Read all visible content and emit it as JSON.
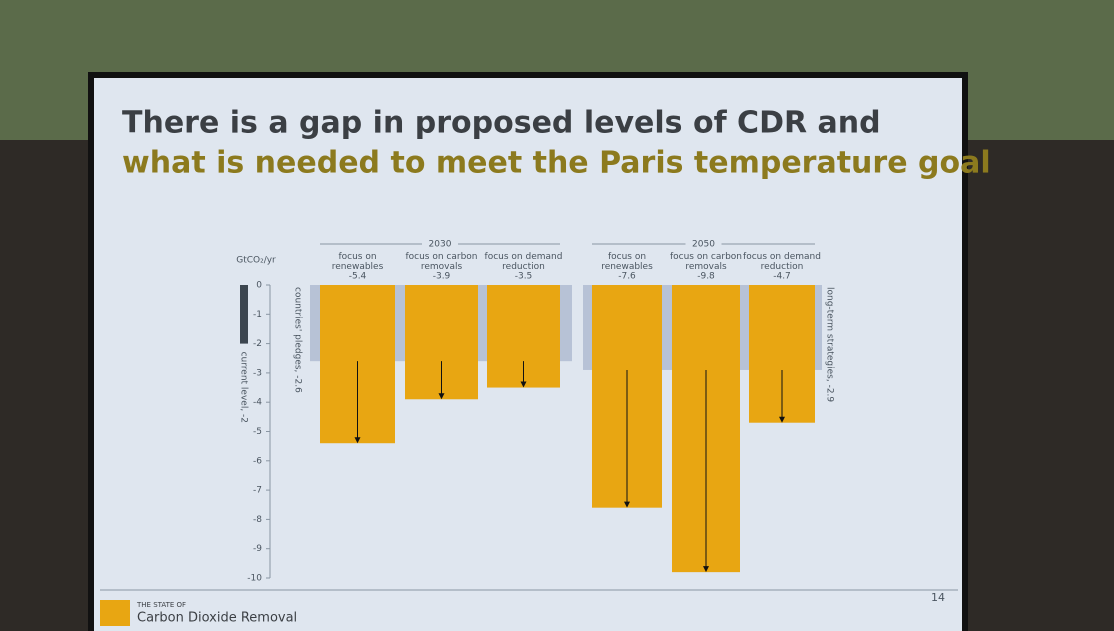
{
  "chart_data": {
    "type": "bar",
    "title": "There is a gap in proposed levels of CDR and",
    "title_highlight": "what is needed to meet the Paris temperature goal",
    "y_label": "GtCO₂/yr",
    "color": "#e8a612",
    "ylim": [
      -10,
      0
    ],
    "yticks": [
      0,
      -1,
      -2,
      -3,
      -4,
      -5,
      -6,
      -7,
      -8,
      -9,
      -10
    ],
    "current": {
      "label": "current level, -2",
      "value": -2,
      "color": "#3c4650"
    },
    "groups": [
      {
        "label": "2030",
        "categories": [
          "focus on renewables",
          "focus on carbon removals",
          "focus on demand reduction"
        ],
        "values": [
          -5.4,
          -3.9,
          -3.5
        ],
        "reference": {
          "label": "countries' pledges, -2.6",
          "value": -2.6,
          "color": "#b7c2d6"
        }
      },
      {
        "label": "2050",
        "categories": [
          "focus on renewables",
          "focus on carbon removals",
          "focus on demand reduction"
        ],
        "values": [
          -7.6,
          -9.8,
          -4.7
        ],
        "reference": {
          "label": "long-term strategies, -2.9",
          "value": -2.9,
          "color": "#b7c2d6"
        }
      }
    ],
    "footer": {
      "kicker": "THE STATE OF",
      "name": "Carbon Dioxide Removal",
      "page": "14"
    }
  }
}
